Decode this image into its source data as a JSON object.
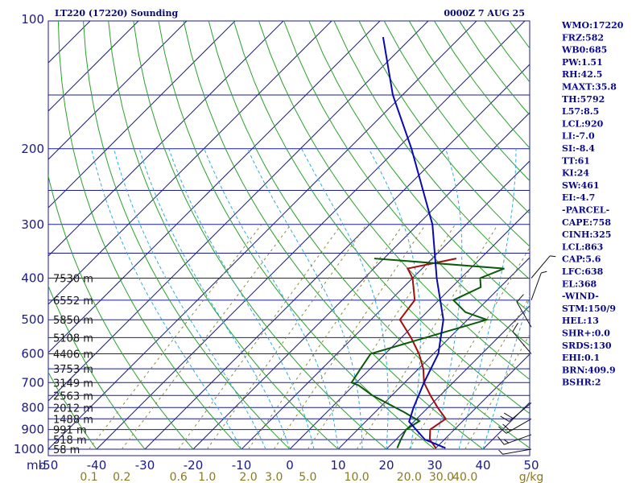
{
  "header": {
    "title": "LT220 (17220) Sounding",
    "time": "0000Z  7 AUG 25"
  },
  "indices": [
    "WMO:17220",
    "FRZ:582",
    "WB0:685",
    "PW:1.51",
    "RH:42.5",
    "MAXT:35.8",
    "TH:5792",
    "L57:8.5",
    "LCL:920",
    "LI:-7.0",
    "SI:-8.4",
    "TT:61",
    "KI:24",
    "SW:461",
    "EI:-4.7",
    "-PARCEL-",
    "CAPE:758",
    "CINH:325",
    "LCL:863",
    "CAP:5.6",
    "LFC:638",
    "EL:368",
    "-WIND-",
    "STM:150/9",
    "HEL:13",
    "SHR+:0.0",
    "SRDS:130",
    "EHI:0.1",
    "BRN:409.9",
    "BSHR:2"
  ],
  "colors": {
    "isobar": "#1a1a9c",
    "isotherm": "#1a1a9c",
    "dry_adiabat": "#2aa02a",
    "moist_adiabat": "#33aadd",
    "mixing_ratio": "#8a8a3a",
    "temperature": "#a01010",
    "dewpoint": "#0a5a0a",
    "parcel": "#0a0ab0"
  },
  "chart_data": {
    "type": "line",
    "title": "LT220 (17220) Sounding",
    "subtitle": "0000Z  7 AUG 25",
    "y_scale": "log-pressure",
    "ylim": [
      1000,
      100
    ],
    "xlim": [
      -50,
      50
    ],
    "x_ticks": [
      "-50",
      "-40",
      "-30",
      "-20",
      "-10",
      "0",
      "10",
      "20",
      "30",
      "40",
      "50"
    ],
    "x_axis_prefix": "mb",
    "p_ticks": [
      "100",
      "200",
      "300",
      "400",
      "500",
      "600",
      "700",
      "800",
      "900",
      "1000"
    ],
    "mixing_ratio_ticks": [
      "0.1",
      "0.2",
      "0.6",
      "1.0",
      "2.0",
      "3.0",
      "5.0",
      "10.0",
      "20.0",
      "30.0",
      "40.0"
    ],
    "mixing_ratio_unit": "g/kg",
    "height_labels": [
      {
        "p": 400,
        "label": "7530 m"
      },
      {
        "p": 450,
        "label": "6552 m"
      },
      {
        "p": 500,
        "label": "5850 m"
      },
      {
        "p": 550,
        "label": "5108 m"
      },
      {
        "p": 600,
        "label": "4406 m"
      },
      {
        "p": 650,
        "label": "3753 m"
      },
      {
        "p": 700,
        "label": "3149 m"
      },
      {
        "p": 750,
        "label": "2563 m"
      },
      {
        "p": 800,
        "label": "2012 m"
      },
      {
        "p": 850,
        "label": "1488 m"
      },
      {
        "p": 900,
        "label": "991 m"
      },
      {
        "p": 950,
        "label": "518 m"
      },
      {
        "p": 1000,
        "label": "58 m"
      }
    ],
    "series": [
      {
        "key": "temperature",
        "points": [
          [
            994,
            30
          ],
          [
            950,
            27
          ],
          [
            900,
            25
          ],
          [
            850,
            26
          ],
          [
            800,
            22
          ],
          [
            750,
            18
          ],
          [
            700,
            14
          ],
          [
            650,
            11
          ],
          [
            600,
            7
          ],
          [
            550,
            2
          ],
          [
            500,
            -4
          ],
          [
            450,
            -5
          ],
          [
            400,
            -10
          ],
          [
            380,
            -13
          ],
          [
            370,
            -9
          ],
          [
            360,
            -5
          ]
        ]
      },
      {
        "key": "dewpoint",
        "points": [
          [
            994,
            22
          ],
          [
            950,
            21
          ],
          [
            900,
            20
          ],
          [
            860,
            21
          ],
          [
            820,
            16
          ],
          [
            750,
            6
          ],
          [
            710,
            1
          ],
          [
            700,
            -1
          ],
          [
            650,
            -2
          ],
          [
            600,
            -3
          ],
          [
            550,
            5
          ],
          [
            500,
            14
          ],
          [
            480,
            8
          ],
          [
            450,
            3
          ],
          [
            420,
            6
          ],
          [
            400,
            4
          ],
          [
            380,
            7
          ],
          [
            360,
            -22
          ]
        ]
      },
      {
        "key": "parcel",
        "points": [
          [
            994,
            32
          ],
          [
            950,
            26
          ],
          [
            863,
            19
          ],
          [
            800,
            17
          ],
          [
            700,
            14
          ],
          [
            600,
            11
          ],
          [
            500,
            5
          ],
          [
            400,
            -5
          ],
          [
            300,
            -17
          ],
          [
            200,
            -37
          ],
          [
            150,
            -52
          ],
          [
            110,
            -66
          ]
        ]
      }
    ],
    "wind_barbs": [
      {
        "p": 1000,
        "dir": 260,
        "spd": 5
      },
      {
        "p": 925,
        "dir": 250,
        "spd": 15
      },
      {
        "p": 850,
        "dir": 240,
        "spd": 20
      },
      {
        "p": 780,
        "dir": 230,
        "spd": 20
      },
      {
        "p": 600,
        "dir": 320,
        "spd": 10
      },
      {
        "p": 520,
        "dir": 330,
        "spd": 10
      },
      {
        "p": 450,
        "dir": 20,
        "spd": 5
      },
      {
        "p": 400,
        "dir": 40,
        "spd": 5
      }
    ]
  }
}
